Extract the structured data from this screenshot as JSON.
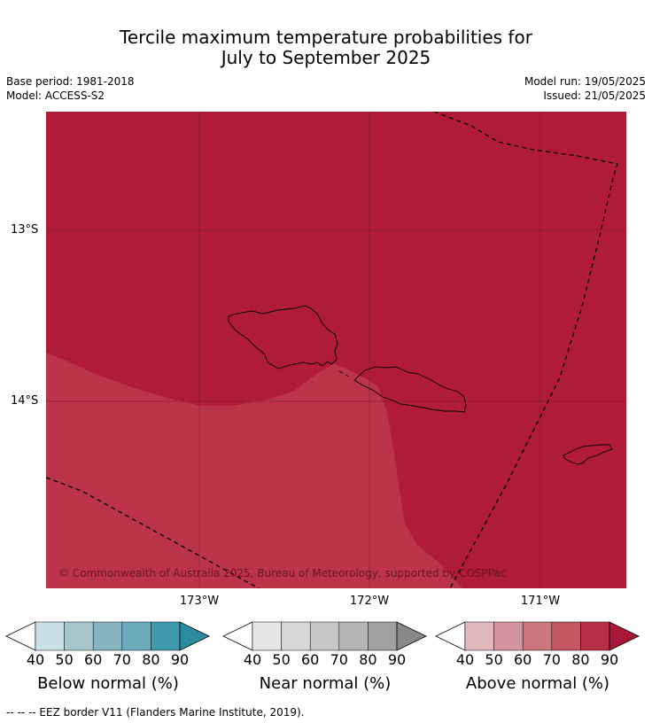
{
  "title": {
    "line1": "Tercile maximum temperature probabilities for",
    "line2": "July to September 2025"
  },
  "meta": {
    "base_period": "Base period: 1981-2018",
    "model": "Model: ACCESS-S2",
    "model_run": "Model run: 19/05/2025",
    "issued": "Issued: 21/05/2025"
  },
  "map": {
    "latitude_labels": [
      "13°S",
      "14°S"
    ],
    "longitude_labels": [
      "173°W",
      "172°W",
      "171°W"
    ],
    "copyright": "© Commonwealth of Australia 2025, Bureau of Meteorology, supported by COSPPac",
    "colors": {
      "above_80_90": "#b01c38",
      "above_70_80": "#bc3449"
    },
    "regions": [
      {
        "category": "Above normal",
        "range": "80-90"
      },
      {
        "category": "Above normal",
        "range": "70-80"
      }
    ]
  },
  "colorbars": [
    {
      "label": "Below normal (%)",
      "ticks": [
        "40",
        "50",
        "60",
        "70",
        "80",
        "90"
      ],
      "colors": [
        "#ffffff",
        "#c9e1e6",
        "#a5c6cc",
        "#88b5c2",
        "#6aabbb",
        "#4199ad",
        "#2d8ba0"
      ]
    },
    {
      "label": "Near normal (%)",
      "ticks": [
        "40",
        "50",
        "60",
        "70",
        "80",
        "90"
      ],
      "colors": [
        "#ffffff",
        "#e6e6e6",
        "#d7d7d7",
        "#c6c6c6",
        "#b4b4b4",
        "#a0a0a0",
        "#888888"
      ]
    },
    {
      "label": "Above normal (%)",
      "ticks": [
        "40",
        "50",
        "60",
        "70",
        "80",
        "90"
      ],
      "colors": [
        "#ffffff",
        "#e2b8bf",
        "#d5959e",
        "#cc767f",
        "#c35764",
        "#b73048",
        "#a8163a"
      ]
    }
  ],
  "footnote": "--  --  -- EEZ border V11 (Flanders Marine Institute, 2019)."
}
